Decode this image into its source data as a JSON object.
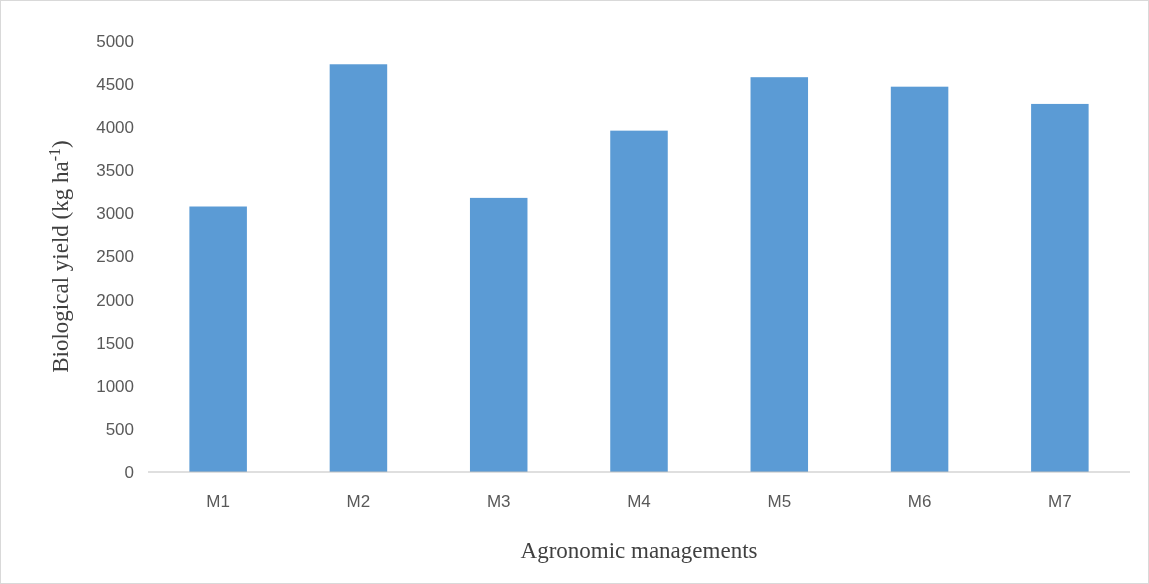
{
  "chart_data": {
    "type": "bar",
    "xlabel": "Agronomic managements",
    "ylabel": "Biological yield (kg ha$^{-1}$)",
    "categories": [
      "M1",
      "M2",
      "M3",
      "M4",
      "M5",
      "M6",
      "M7"
    ],
    "values": [
      3080,
      4730,
      3180,
      3960,
      4580,
      4470,
      4270
    ],
    "color": "#5b9bd5",
    "ylim": [
      0,
      5000
    ],
    "yticks": [
      0,
      500,
      1000,
      1500,
      2000,
      2500,
      3000,
      3500,
      4000,
      4500,
      5000
    ],
    "grid": false
  }
}
